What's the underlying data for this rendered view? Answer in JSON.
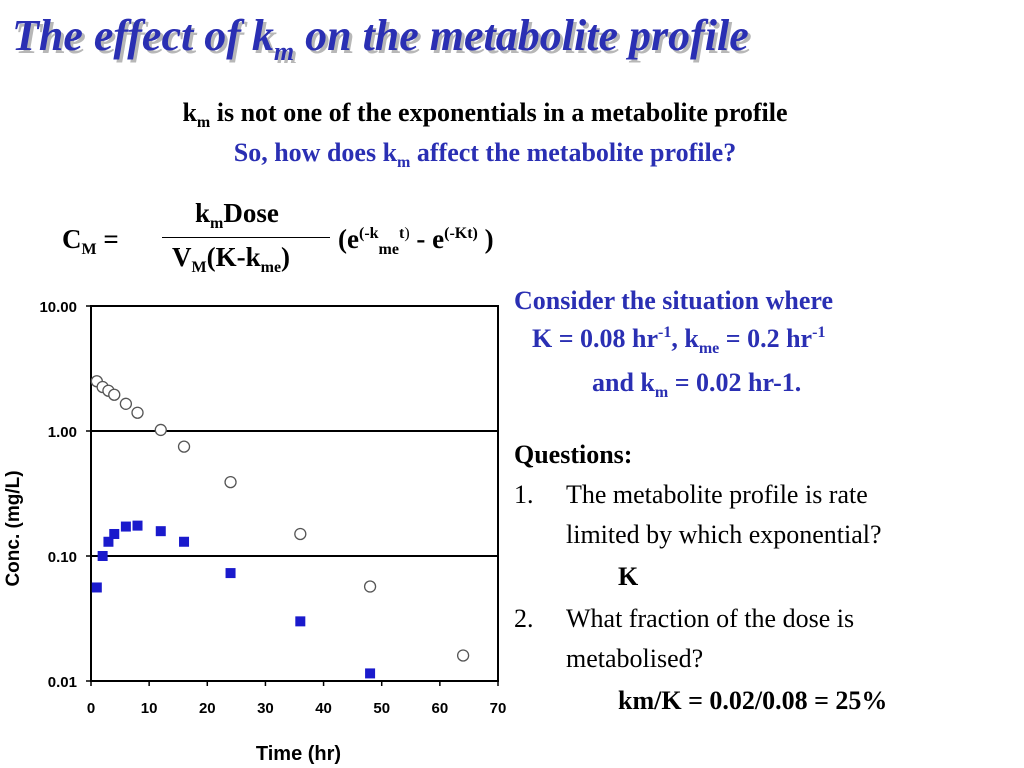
{
  "title": {
    "main": "The effect of k",
    "sub": "m",
    "rest": " on the metabolite profile"
  },
  "line1": {
    "k": "k",
    "sub": "m",
    "text": " is not one of the exponentials in a metabolite profile"
  },
  "line2": {
    "pre": "So, how does k",
    "sub": "m",
    "post": " affect the metabolite profile?"
  },
  "equation": {
    "lhs": "C",
    "lhs_sub": "M",
    "equals": " =",
    "num_k": "k",
    "num_sub": "m",
    "num_rest": "Dose",
    "den_v": "V",
    "den_v_sub": "M",
    "den_rest": "(K-k",
    "den_sub": "me",
    "den_close": ")",
    "paren_open": "(e",
    "exp1_a": "(-k",
    "exp1_sub": "me",
    "exp1_b": "t",
    "exp1_c": ")",
    "minus": " - e",
    "exp2": "(-Kt)",
    "paren_close": " )"
  },
  "consider": {
    "line1": "Consider the situation where",
    "l2_a": "K = 0.08 hr",
    "l2_sup1": "-1",
    "l2_b": ", k",
    "l2_sub": "me",
    "l2_c": " = 0.2 hr",
    "l2_sup2": "-1",
    "l3_a": "and k",
    "l3_sub": "m",
    "l3_b": " = 0.02 hr-1."
  },
  "questions": {
    "heading": "Questions:",
    "q1_num": "1.",
    "q1_line1": "The metabolite profile is rate",
    "q1_line2": "limited by which exponential?",
    "q1_answer": "K",
    "q2_num": "2.",
    "q2_line1": "What fraction of the dose is",
    "q2_line2": "metabolised?",
    "q2_answer": "km/K = 0.02/0.08 = 25%"
  },
  "chart_data": {
    "type": "scatter",
    "xlabel": "Time (hr)",
    "ylabel": "Conc. (mg/L)",
    "xlim": [
      0,
      70
    ],
    "ylim": [
      0.01,
      10
    ],
    "y_scale": "log",
    "x_ticks": [
      "0",
      "10",
      "20",
      "30",
      "40",
      "50",
      "60",
      "70"
    ],
    "y_ticks": [
      "10.00",
      "1.00",
      "0.10",
      "0.01"
    ],
    "gridlines_y": [
      0.1,
      1
    ],
    "series": [
      {
        "marker": "open-circle",
        "color": "#000000",
        "x": [
          1,
          2,
          3,
          4,
          6,
          8,
          12,
          16,
          24,
          36,
          48,
          64
        ],
        "y": [
          2.5,
          2.25,
          2.1,
          1.95,
          1.65,
          1.4,
          1.02,
          0.75,
          0.39,
          0.15,
          0.057,
          0.016
        ]
      },
      {
        "marker": "filled-square",
        "color": "#1a1acc",
        "x": [
          1,
          2,
          3,
          4,
          6,
          8,
          12,
          16,
          24,
          36,
          48
        ],
        "y": [
          0.056,
          0.1,
          0.13,
          0.15,
          0.172,
          0.175,
          0.158,
          0.13,
          0.073,
          0.03,
          0.0115
        ]
      }
    ]
  }
}
